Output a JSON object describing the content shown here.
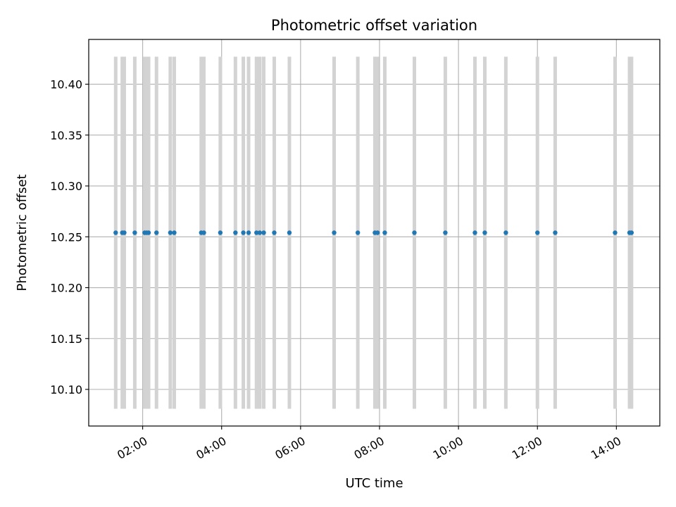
{
  "chart_data": {
    "type": "scatter",
    "title": "Photometric offset variation",
    "xlabel": "UTC time",
    "ylabel": "Photometric offset",
    "xlim": [
      "00:38",
      "15:06"
    ],
    "ylim": [
      10.064,
      10.444
    ],
    "grid": true,
    "x_ticks": [
      "02:00",
      "04:00",
      "06:00",
      "08:00",
      "10:00",
      "12:00",
      "14:00"
    ],
    "y_ticks": [
      "10.10",
      "10.15",
      "10.20",
      "10.25",
      "10.30",
      "10.35",
      "10.40"
    ],
    "error_band": {
      "low": 10.081,
      "high": 10.427,
      "color": "#d3d3d3"
    },
    "series": [
      {
        "color": "#1f77b4",
        "points": [
          {
            "x": "01:19",
            "y": 10.254
          },
          {
            "x": "01:29",
            "y": 10.254
          },
          {
            "x": "01:32",
            "y": 10.254
          },
          {
            "x": "01:48",
            "y": 10.254
          },
          {
            "x": "02:03",
            "y": 10.254
          },
          {
            "x": "02:06",
            "y": 10.254
          },
          {
            "x": "02:09",
            "y": 10.254
          },
          {
            "x": "02:21",
            "y": 10.254
          },
          {
            "x": "02:42",
            "y": 10.254
          },
          {
            "x": "02:48",
            "y": 10.254
          },
          {
            "x": "03:29",
            "y": 10.254
          },
          {
            "x": "03:33",
            "y": 10.254
          },
          {
            "x": "03:58",
            "y": 10.254
          },
          {
            "x": "04:21",
            "y": 10.254
          },
          {
            "x": "04:33",
            "y": 10.254
          },
          {
            "x": "04:41",
            "y": 10.254
          },
          {
            "x": "04:53",
            "y": 10.254
          },
          {
            "x": "04:58",
            "y": 10.254
          },
          {
            "x": "05:04",
            "y": 10.254
          },
          {
            "x": "05:20",
            "y": 10.254
          },
          {
            "x": "05:43",
            "y": 10.254
          },
          {
            "x": "06:51",
            "y": 10.254
          },
          {
            "x": "07:27",
            "y": 10.254
          },
          {
            "x": "07:53",
            "y": 10.254
          },
          {
            "x": "07:57",
            "y": 10.254
          },
          {
            "x": "08:08",
            "y": 10.254
          },
          {
            "x": "08:53",
            "y": 10.254
          },
          {
            "x": "09:40",
            "y": 10.254
          },
          {
            "x": "10:25",
            "y": 10.254
          },
          {
            "x": "10:40",
            "y": 10.254
          },
          {
            "x": "11:12",
            "y": 10.254
          },
          {
            "x": "12:00",
            "y": 10.254
          },
          {
            "x": "12:27",
            "y": 10.254
          },
          {
            "x": "13:58",
            "y": 10.254
          },
          {
            "x": "14:20",
            "y": 10.254
          },
          {
            "x": "14:23",
            "y": 10.254
          }
        ]
      }
    ]
  }
}
